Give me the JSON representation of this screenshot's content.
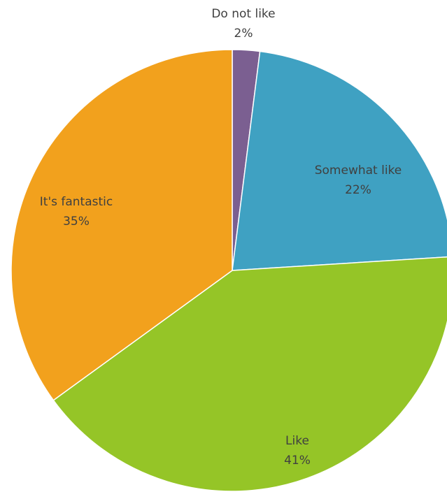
{
  "chart_data": {
    "type": "pie",
    "title": "",
    "start_angle_deg": 0,
    "direction": "clockwise",
    "slices": [
      {
        "label": "Do not like",
        "value": 2,
        "value_label": "2%",
        "color": "#7B5F91"
      },
      {
        "label": "Somewhat like",
        "value": 22,
        "value_label": "22%",
        "color": "#3FA1C2"
      },
      {
        "label": "Like",
        "value": 41,
        "value_label": "41%",
        "color": "#95C527"
      },
      {
        "label": "It's fantastic",
        "value": 35,
        "value_label": "35%",
        "color": "#F2A11D"
      }
    ],
    "legend": "none",
    "data_labels": "category and percentage"
  }
}
